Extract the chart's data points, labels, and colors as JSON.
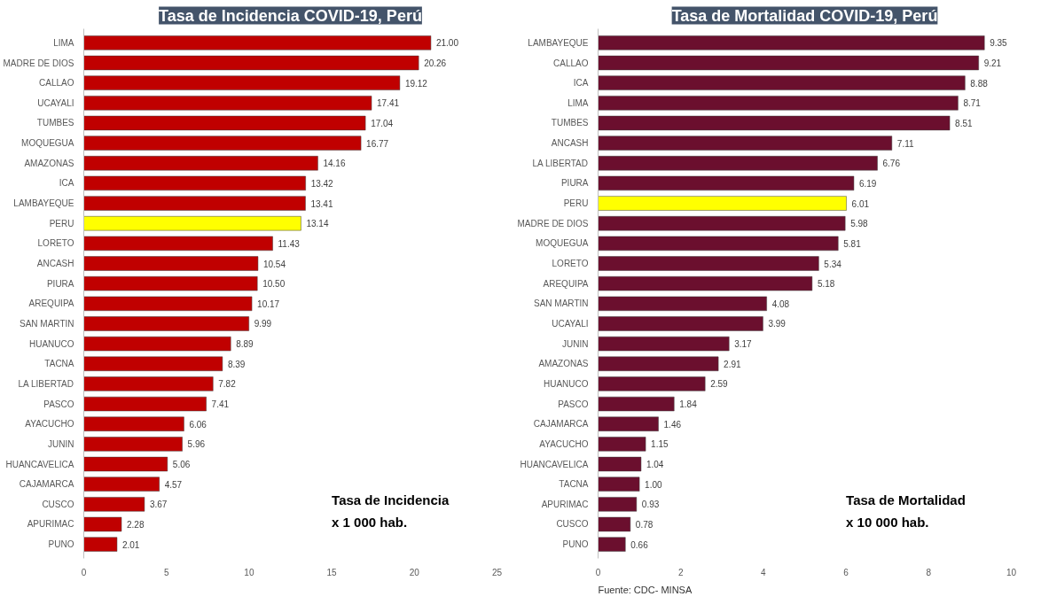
{
  "chart_data": [
    {
      "type": "bar",
      "orientation": "horizontal",
      "title": "Tasa de Incidencia COVID-19, Perú",
      "categories": [
        "LIMA",
        "MADRE DE DIOS",
        "CALLAO",
        "UCAYALI",
        "TUMBES",
        "MOQUEGUA",
        "AMAZONAS",
        "ICA",
        "LAMBAYEQUE",
        "PERU",
        "LORETO",
        "ANCASH",
        "PIURA",
        "AREQUIPA",
        "SAN MARTIN",
        "HUANUCO",
        "TACNA",
        "LA LIBERTAD",
        "PASCO",
        "AYACUCHO",
        "JUNIN",
        "HUANCAVELICA",
        "CAJAMARCA",
        "CUSCO",
        "APURIMAC",
        "PUNO"
      ],
      "values": [
        21.0,
        20.26,
        19.12,
        17.41,
        17.04,
        16.77,
        14.16,
        13.42,
        13.41,
        13.14,
        11.43,
        10.54,
        10.5,
        10.17,
        9.99,
        8.89,
        8.39,
        7.82,
        7.41,
        6.06,
        5.96,
        5.06,
        4.57,
        3.67,
        2.28,
        2.01
      ],
      "colors": [
        "#c00000",
        "#c00000",
        "#c00000",
        "#c00000",
        "#c00000",
        "#c00000",
        "#c00000",
        "#c00000",
        "#c00000",
        "#ffff00",
        "#c00000",
        "#c00000",
        "#c00000",
        "#c00000",
        "#c00000",
        "#c00000",
        "#c00000",
        "#c00000",
        "#c00000",
        "#c00000",
        "#c00000",
        "#c00000",
        "#c00000",
        "#c00000",
        "#c00000",
        "#c00000"
      ],
      "value_labels": [
        "21.00",
        "20.26",
        "19.12",
        "17.41",
        "17.04",
        "16.77",
        "14.16",
        "13.42",
        "13.41",
        "13.14",
        "11.43",
        "10.54",
        "10.50",
        "10.17",
        "9.99",
        "8.89",
        "8.39",
        "7.82",
        "7.41",
        "6.06",
        "5.96",
        "5.06",
        "4.57",
        "3.67",
        "2.28",
        "2.01"
      ],
      "xlim": [
        0,
        25
      ],
      "xticks": [
        0,
        5,
        10,
        15,
        20,
        25
      ],
      "grid": false,
      "annotations": [
        "Tasa de Incidencia",
        "x 1 000 hab."
      ]
    },
    {
      "type": "bar",
      "orientation": "horizontal",
      "title": "Tasa de Mortalidad COVID-19, Perú",
      "categories": [
        "LAMBAYEQUE",
        "CALLAO",
        "ICA",
        "LIMA",
        "TUMBES",
        "ANCASH",
        "LA LIBERTAD",
        "PIURA",
        "PERU",
        "MADRE DE DIOS",
        "MOQUEGUA",
        "LORETO",
        "AREQUIPA",
        "SAN MARTIN",
        "UCAYALI",
        "JUNIN",
        "AMAZONAS",
        "HUANUCO",
        "PASCO",
        "CAJAMARCA",
        "AYACUCHO",
        "HUANCAVELICA",
        "TACNA",
        "APURIMAC",
        "CUSCO",
        "PUNO"
      ],
      "values": [
        9.35,
        9.21,
        8.88,
        8.71,
        8.51,
        7.11,
        6.76,
        6.19,
        6.01,
        5.98,
        5.81,
        5.34,
        5.18,
        4.08,
        3.99,
        3.17,
        2.91,
        2.59,
        1.84,
        1.46,
        1.15,
        1.04,
        1.0,
        0.93,
        0.78,
        0.66
      ],
      "colors": [
        "#6b0f2e",
        "#6b0f2e",
        "#6b0f2e",
        "#6b0f2e",
        "#6b0f2e",
        "#6b0f2e",
        "#6b0f2e",
        "#6b0f2e",
        "#ffff00",
        "#6b0f2e",
        "#6b0f2e",
        "#6b0f2e",
        "#6b0f2e",
        "#6b0f2e",
        "#6b0f2e",
        "#6b0f2e",
        "#6b0f2e",
        "#6b0f2e",
        "#6b0f2e",
        "#6b0f2e",
        "#6b0f2e",
        "#6b0f2e",
        "#6b0f2e",
        "#6b0f2e",
        "#6b0f2e",
        "#6b0f2e"
      ],
      "value_labels": [
        "9.35",
        "9.21",
        "8.88",
        "8.71",
        "8.51",
        "7.11",
        "6.76",
        "6.19",
        "6.01",
        "5.98",
        "5.81",
        "5.34",
        "5.18",
        "4.08",
        "3.99",
        "3.17",
        "2.91",
        "2.59",
        "1.84",
        "1.46",
        "1.15",
        "1.04",
        "1.00",
        "0.93",
        "0.78",
        "0.66"
      ],
      "xlim": [
        0,
        10
      ],
      "xticks": [
        0,
        2,
        4,
        6,
        8,
        10
      ],
      "grid": false,
      "annotations": [
        "Tasa de Mortalidad",
        "x 10 000 hab.",
        "Fuente: CDC- MINSA"
      ]
    }
  ]
}
